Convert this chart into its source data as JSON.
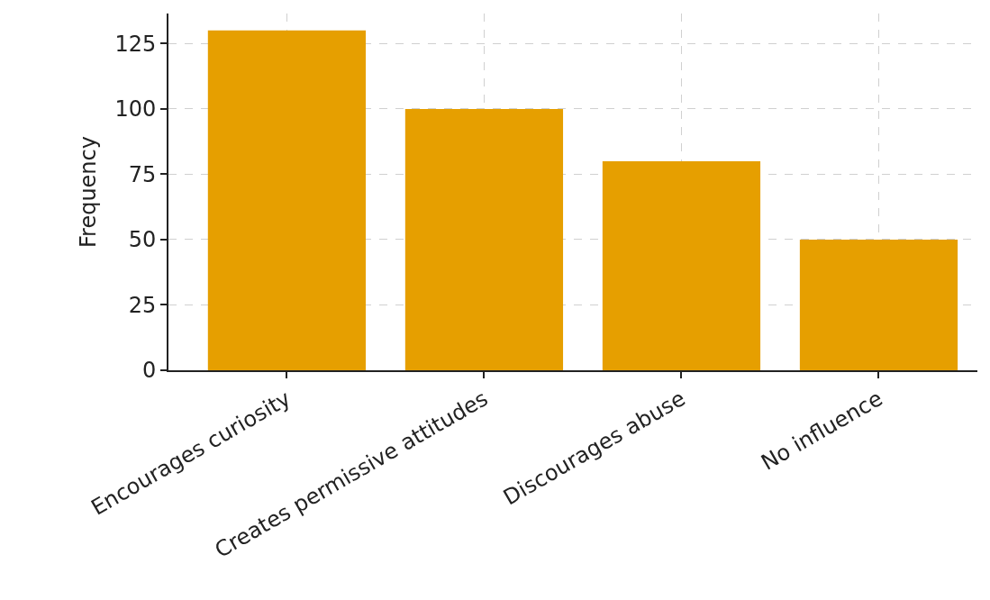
{
  "chart_data": {
    "type": "bar",
    "ylabel": "Frequency",
    "categories": [
      "Encourages curiosity",
      "Creates permissive attitudes",
      "Discourages abuse",
      "No influence"
    ],
    "values": [
      130,
      100,
      80,
      50
    ],
    "color": "#e69f00",
    "ylim": [
      0,
      136.5
    ],
    "yticks": [
      0,
      25,
      50,
      75,
      100,
      125
    ],
    "grid": true
  }
}
